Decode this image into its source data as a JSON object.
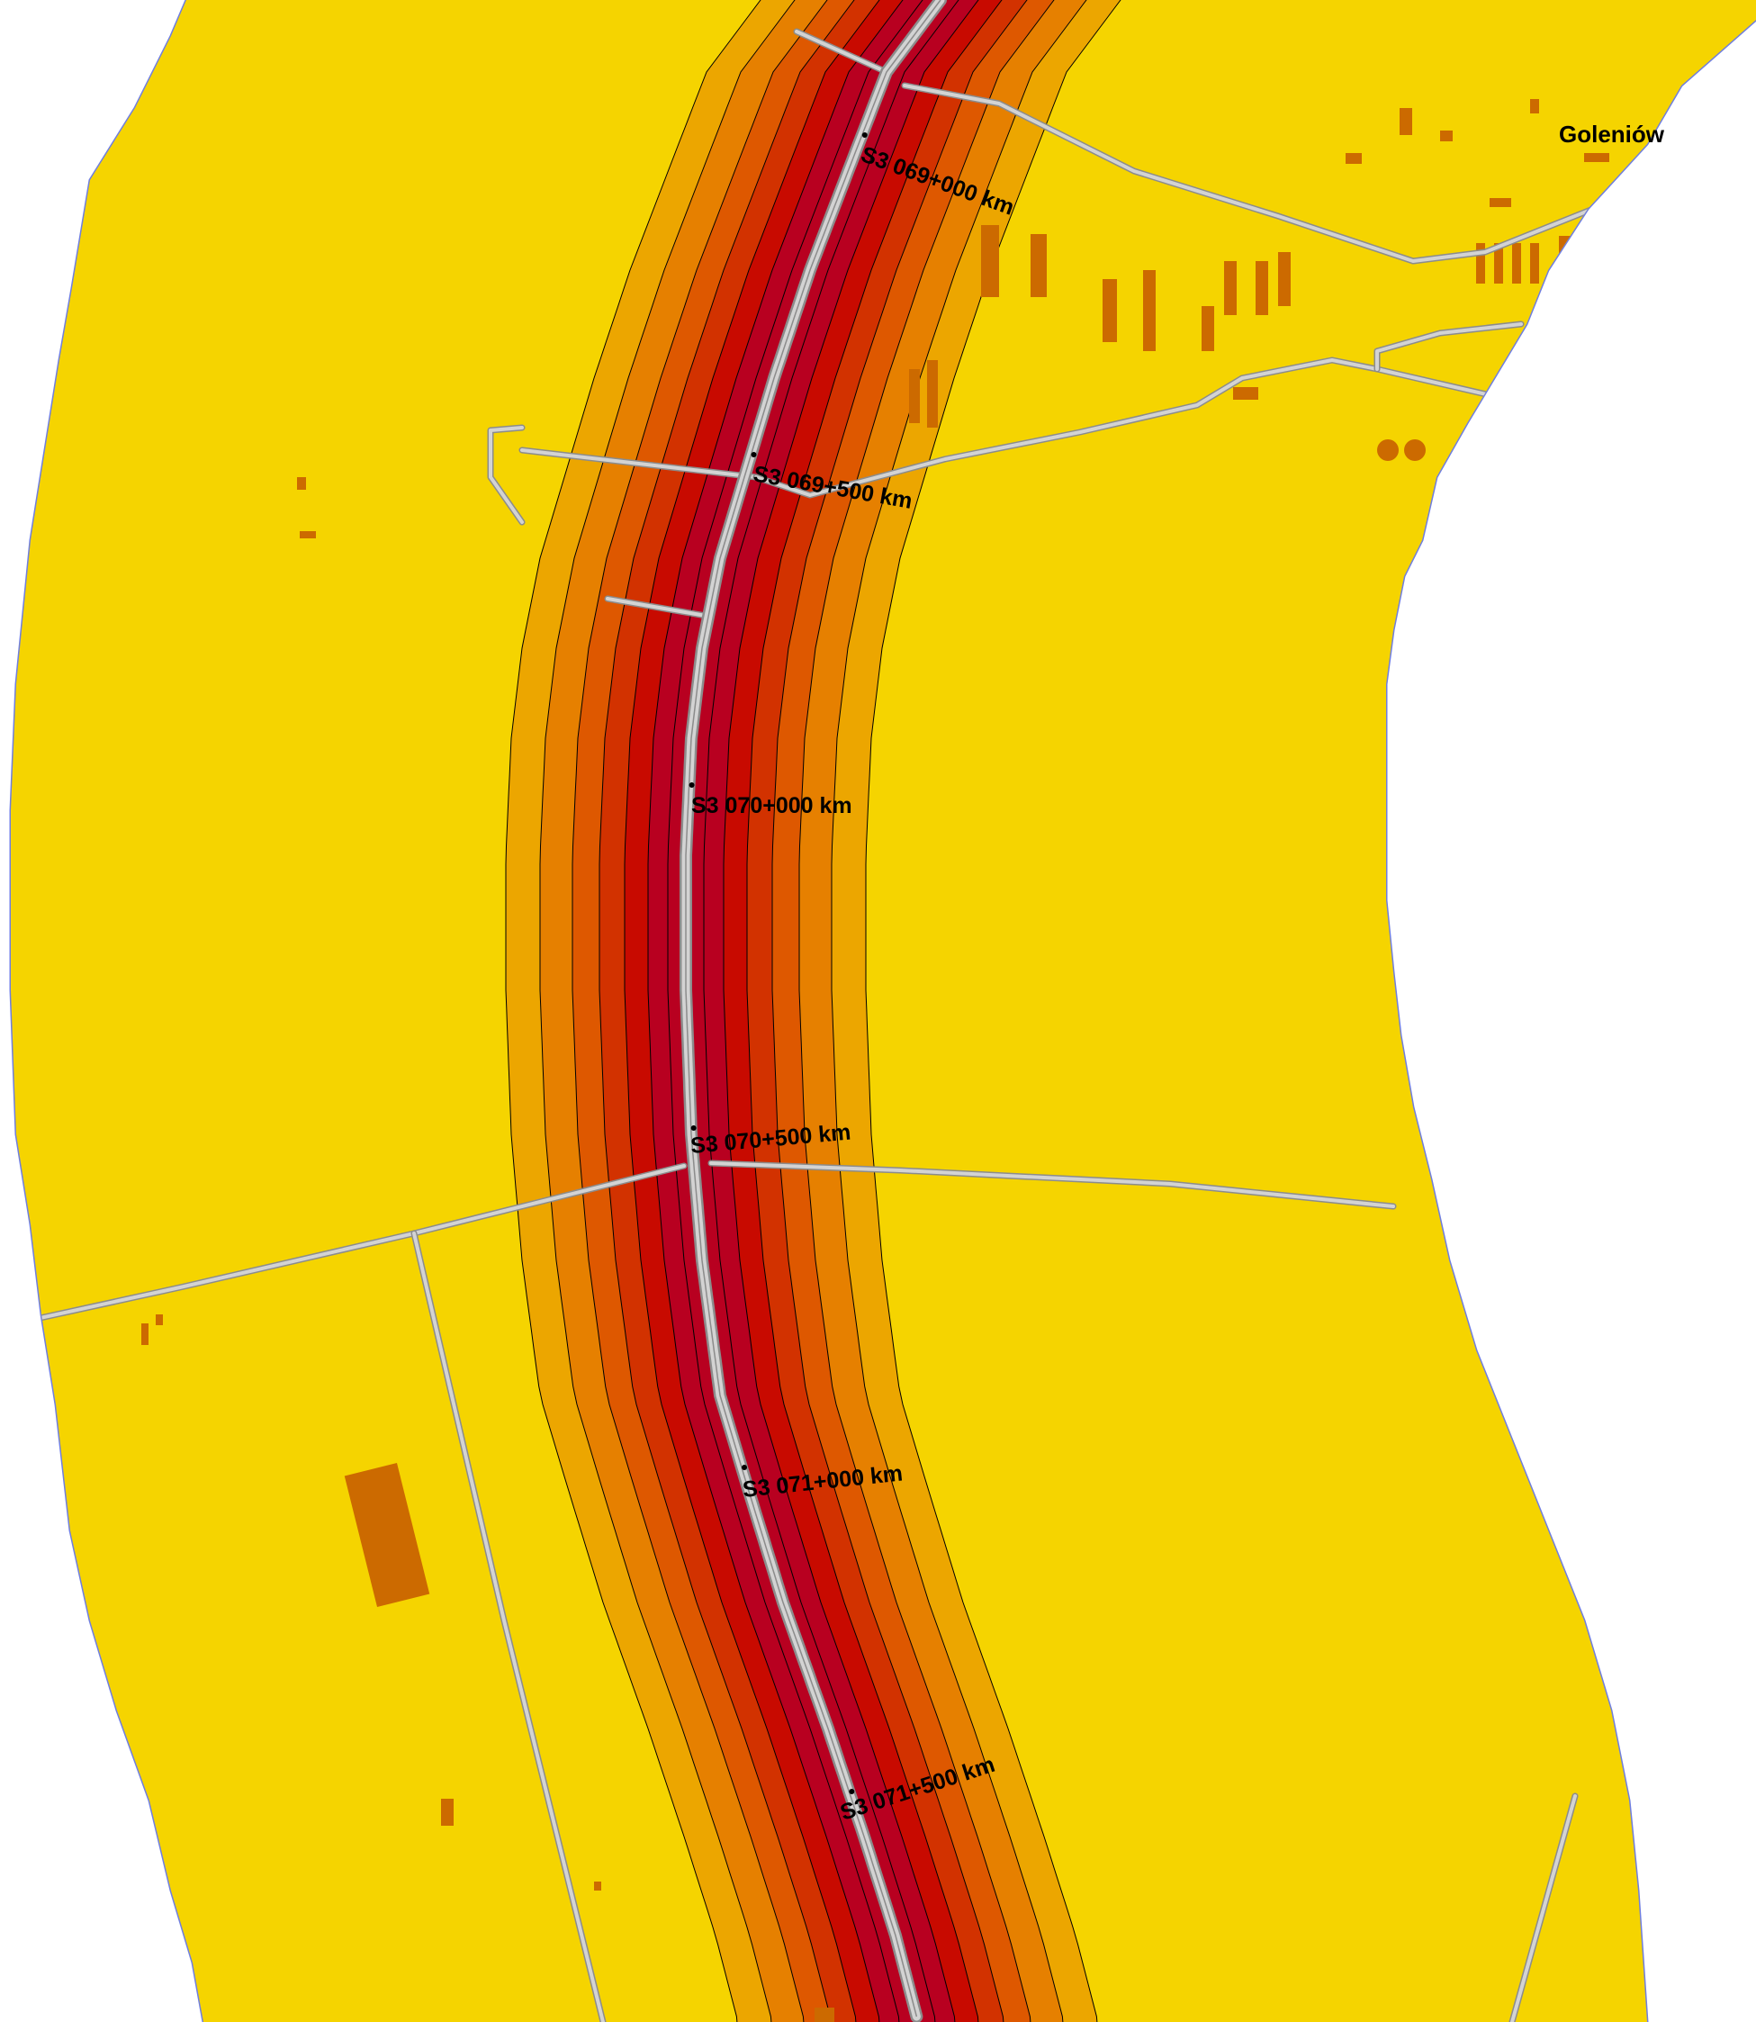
{
  "map": {
    "place_labels": [
      {
        "name": "goleniow",
        "text": "Goleniów"
      }
    ],
    "km_markers": [
      {
        "text": "S3 069+000 km"
      },
      {
        "text": "S3 069+500 km"
      },
      {
        "text": "S3 070+000 km"
      },
      {
        "text": "S3 070+500 km"
      },
      {
        "text": "S3 071+000 km"
      },
      {
        "text": "S3 071+500 km"
      }
    ],
    "noise_bands": {
      "colors": [
        "#f5d400",
        "#eca600",
        "#e68000",
        "#de5800",
        "#d23200",
        "#c80a00",
        "#b80020"
      ]
    },
    "colors": {
      "background": "#ffffff",
      "boundary_line": "#6f7ee0",
      "road": "#d3d3d3",
      "road_casing": "#8c8c8c",
      "building": "#cc6a00"
    }
  }
}
